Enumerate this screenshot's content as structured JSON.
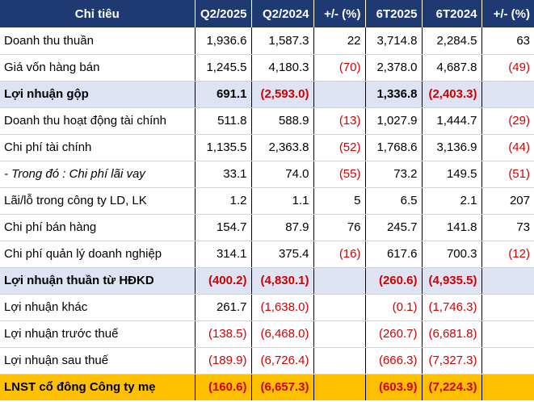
{
  "header": [
    "Chỉ tiêu",
    "Q2/2025",
    "Q2/2024",
    "+/- (%)",
    "6T2025",
    "6T2024",
    "+/- (%)"
  ],
  "rows": [
    {
      "label": "Doanh thu thuần",
      "style": "normal",
      "cells": [
        "1,936.6",
        "1,587.3",
        "22",
        "3,714.8",
        "2,284.5",
        "63"
      ]
    },
    {
      "label": "Giá vốn hàng bán",
      "style": "normal",
      "cells": [
        "1,245.5",
        "4,180.3",
        "(70)",
        "2,378.0",
        "4,687.8",
        "(49)"
      ]
    },
    {
      "label": "Lợi nhuận gộp",
      "style": "hl",
      "cells": [
        "691.1",
        "(2,593.0)",
        "",
        "1,336.8",
        "(2,403.3)",
        ""
      ]
    },
    {
      "label": "Doanh thu hoạt động tài chính",
      "style": "normal",
      "cells": [
        "511.8",
        "588.9",
        "(13)",
        "1,027.9",
        "1,444.7",
        "(29)"
      ]
    },
    {
      "label": "Chi phí tài chính",
      "style": "normal",
      "cells": [
        "1,135.5",
        "2,363.8",
        "(52)",
        "1,768.6",
        "3,136.9",
        "(44)"
      ]
    },
    {
      "label": "- Trong đó : Chi phí lãi vay",
      "style": "italic",
      "cells": [
        "33.1",
        "74.0",
        "(55)",
        "73.2",
        "149.5",
        "(51)"
      ]
    },
    {
      "label": "Lãi/lỗ trong công ty LD, LK",
      "style": "normal",
      "cells": [
        "1.2",
        "1.1",
        "5",
        "6.5",
        "2.1",
        "207"
      ]
    },
    {
      "label": "Chi phí bán hàng",
      "style": "normal",
      "cells": [
        "154.7",
        "87.9",
        "76",
        "245.7",
        "141.8",
        "73"
      ]
    },
    {
      "label": "Chi phí quản lý doanh nghiệp",
      "style": "normal",
      "cells": [
        "314.1",
        "375.4",
        "(16)",
        "617.6",
        "700.3",
        "(12)"
      ]
    },
    {
      "label": "Lợi nhuận thuần từ HĐKD",
      "style": "hl",
      "cells": [
        "(400.2)",
        "(4,830.1)",
        "",
        "(260.6)",
        "(4,935.5)",
        ""
      ]
    },
    {
      "label": "Lợi nhuận khác",
      "style": "normal",
      "cells": [
        "261.7",
        "(1,638.0)",
        "",
        "(0.1)",
        "(1,746.3)",
        ""
      ]
    },
    {
      "label": "Lợi nhuận trước thuế",
      "style": "normal",
      "cells": [
        "(138.5)",
        "(6,468.0)",
        "",
        "(260.7)",
        "(6,681.8)",
        ""
      ]
    },
    {
      "label": "Lợi nhuận sau thuế",
      "style": "normal",
      "cells": [
        "(189.9)",
        "(6,726.4)",
        "",
        "(666.3)",
        "(7,327.3)",
        ""
      ]
    },
    {
      "label": "LNST cổ đông Công ty mẹ",
      "style": "gold",
      "cells": [
        "(160.6)",
        "(6,657.3)",
        "",
        "(603.9)",
        "(7,224.3)",
        ""
      ]
    }
  ],
  "colors": {
    "header_bg": "#1f3a72",
    "highlight_bg": "#dde3f3",
    "total_bg": "#ffc000",
    "negative": "#d40000"
  }
}
